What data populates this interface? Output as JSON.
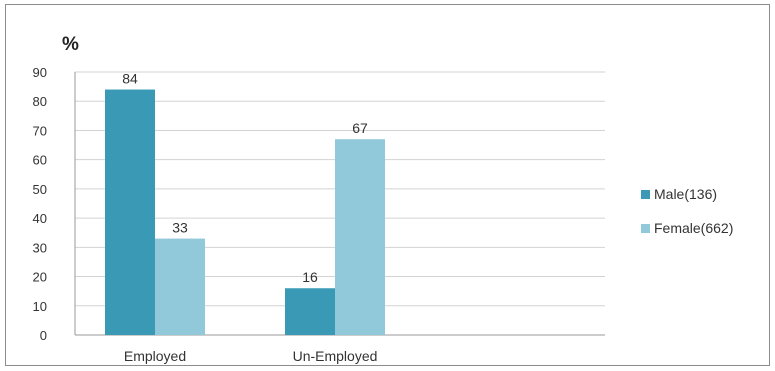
{
  "chart_data": {
    "type": "bar",
    "title": "",
    "ylabel": "%",
    "xlabel": "",
    "categories": [
      "Employed",
      "Un-Employed"
    ],
    "series": [
      {
        "name": "Male(136)",
        "values": [
          84,
          16
        ],
        "color": "#3a9ab5"
      },
      {
        "name": "Female(662)",
        "values": [
          33,
          67
        ],
        "color": "#92c9da"
      }
    ],
    "ylim": [
      0,
      90
    ],
    "yticks": [
      "0",
      "10",
      "20",
      "30",
      "40",
      "50",
      "60",
      "70",
      "80",
      "90"
    ],
    "data_labels": [
      [
        "84",
        "16"
      ],
      [
        "33",
        "67"
      ]
    ],
    "grid": true,
    "legend_position": "right"
  }
}
